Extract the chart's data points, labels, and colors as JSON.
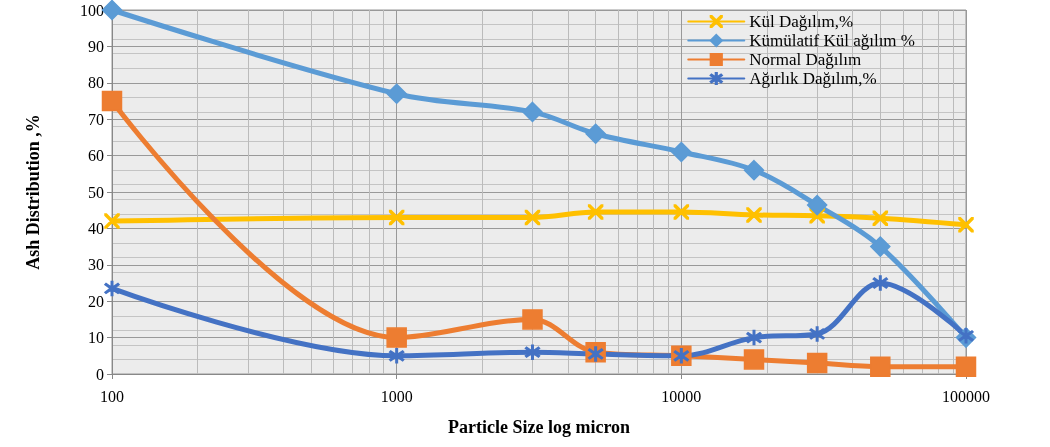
{
  "chart_data": {
    "type": "line",
    "xlabel": "Particle Size log micron",
    "ylabel": "Ash Distribution ,%",
    "log": "x",
    "x": [
      100,
      1000,
      3000,
      5000,
      10000,
      18000,
      30000,
      50000,
      100000
    ],
    "xlim": [
      100,
      100000
    ],
    "xticks": [
      100,
      1000,
      10000,
      100000
    ],
    "ylim": [
      0,
      100
    ],
    "yticks": [
      0,
      10,
      20,
      30,
      40,
      50,
      60,
      70,
      80,
      90,
      100
    ],
    "grid": true,
    "legend": "top right",
    "line_style": "solid",
    "series": [
      {
        "name": "Kül Dağılım,%",
        "color": "#ffc000",
        "marker": "cross",
        "values": [
          42,
          43,
          43,
          44.5,
          44.5,
          43.7,
          43.5,
          42.8,
          41
        ]
      },
      {
        "name": "Kümülatif Kül ağılım %",
        "color": "#5b9bd5",
        "marker": "diamond",
        "values": [
          100,
          77,
          72,
          66,
          61,
          56,
          46.4,
          35,
          10
        ]
      },
      {
        "name": "Normal Dağılım",
        "color": "#ed7d31",
        "marker": "square",
        "values": [
          75,
          10,
          15,
          6,
          5,
          4,
          3,
          2,
          2
        ]
      },
      {
        "name": "Ağırlık Dağılım,%",
        "color": "#4472c4",
        "marker": "star",
        "values": [
          23.5,
          5,
          6,
          5.5,
          5,
          10,
          11,
          25,
          10.5
        ]
      }
    ]
  }
}
